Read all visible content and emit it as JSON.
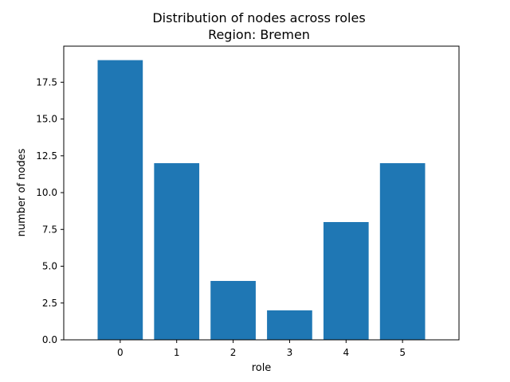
{
  "chart_data": {
    "type": "bar",
    "title": "Distribution of nodes across roles",
    "subtitle": "Region: Bremen",
    "xlabel": "role",
    "ylabel": "number of nodes",
    "categories": [
      "0",
      "1",
      "2",
      "3",
      "4",
      "5"
    ],
    "values": [
      19,
      12,
      4,
      2,
      8,
      12
    ],
    "ylim": [
      0,
      19.95
    ],
    "yticks": [
      0.0,
      2.5,
      5.0,
      7.5,
      10.0,
      12.5,
      15.0,
      17.5
    ],
    "ytick_labels": [
      "0.0",
      "2.5",
      "5.0",
      "7.5",
      "10.0",
      "12.5",
      "15.0",
      "17.5"
    ],
    "bar_color": "#1f77b4",
    "grid": false,
    "legend": "none"
  }
}
